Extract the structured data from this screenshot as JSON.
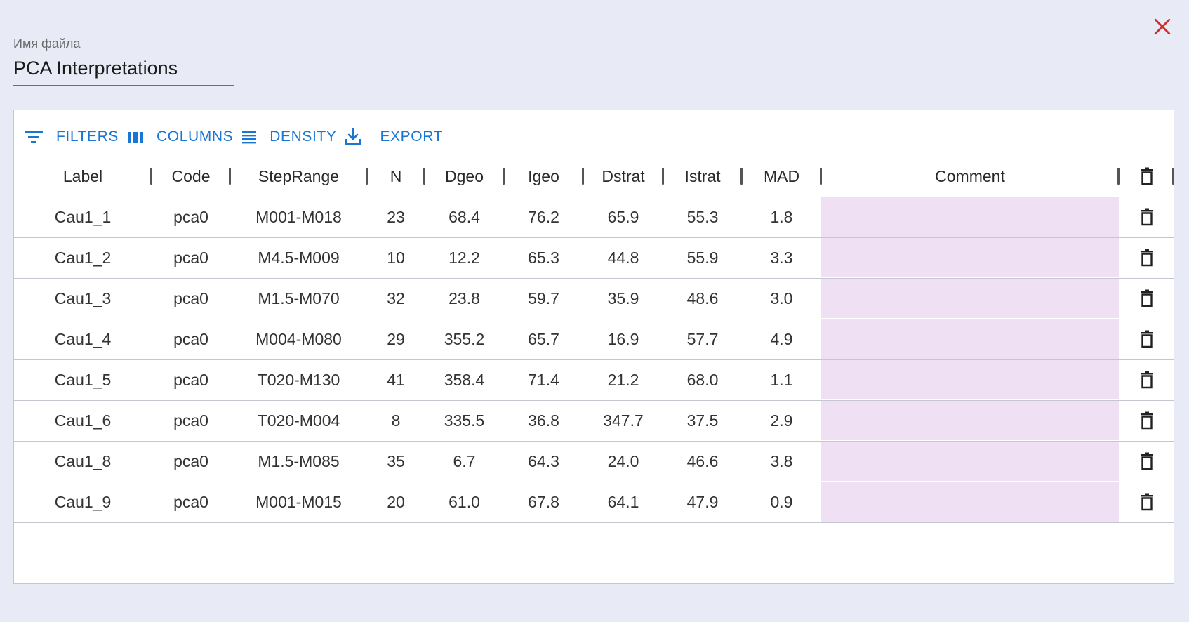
{
  "file": {
    "label": "Имя файла",
    "value": "PCA Interpretations"
  },
  "toolbar": {
    "filters": "FILTERS",
    "columns": "COLUMNS",
    "density": "DENSITY",
    "export": "EXPORT"
  },
  "columns": [
    "Label",
    "Code",
    "StepRange",
    "N",
    "Dgeo",
    "Igeo",
    "Dstrat",
    "Istrat",
    "MAD",
    "Comment"
  ],
  "rows": [
    [
      "Cau1_1",
      "pca0",
      "M001-M018",
      "23",
      "68.4",
      "76.2",
      "65.9",
      "55.3",
      "1.8",
      ""
    ],
    [
      "Cau1_2",
      "pca0",
      "M4.5-M009",
      "10",
      "12.2",
      "65.3",
      "44.8",
      "55.9",
      "3.3",
      ""
    ],
    [
      "Cau1_3",
      "pca0",
      "M1.5-M070",
      "32",
      "23.8",
      "59.7",
      "35.9",
      "48.6",
      "3.0",
      ""
    ],
    [
      "Cau1_4",
      "pca0",
      "M004-M080",
      "29",
      "355.2",
      "65.7",
      "16.9",
      "57.7",
      "4.9",
      ""
    ],
    [
      "Cau1_5",
      "pca0",
      "T020-M130",
      "41",
      "358.4",
      "71.4",
      "21.2",
      "68.0",
      "1.1",
      ""
    ],
    [
      "Cau1_6",
      "pca0",
      "T020-M004",
      "8",
      "335.5",
      "36.8",
      "347.7",
      "37.5",
      "2.9",
      ""
    ],
    [
      "Cau1_8",
      "pca0",
      "M1.5-M085",
      "35",
      "6.7",
      "64.3",
      "24.0",
      "46.6",
      "3.8",
      ""
    ],
    [
      "Cau1_9",
      "pca0",
      "M001-M015",
      "20",
      "61.0",
      "67.8",
      "64.1",
      "47.9",
      "0.9",
      ""
    ]
  ],
  "icons": {
    "close": "close-icon",
    "delete": "trash-icon",
    "filters": "filter-icon",
    "columns": "columns-icon",
    "density": "density-icon",
    "export": "export-icon"
  },
  "colors": {
    "accent": "#1976d2",
    "close": "#d32f2f",
    "comment_bg": "#f0e0f3",
    "background": "#e8eaf6"
  }
}
